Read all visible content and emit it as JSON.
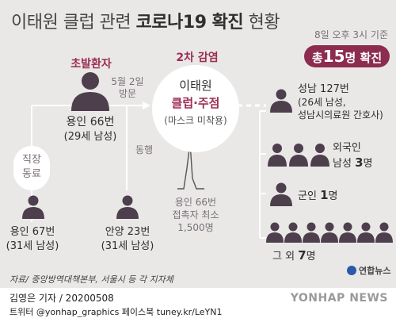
{
  "title": {
    "prefix": "이태원 클럽 관련",
    "bold": "코로나19 확진",
    "suffix": "현황"
  },
  "as_of": "8일 오후 3시 기준",
  "total": {
    "prefix": "총",
    "number": "15",
    "suffix": "명 확진"
  },
  "patient_zero": {
    "heading": "초발환자",
    "name": "용인 66번",
    "detail": "(29세 남성)"
  },
  "visit": {
    "date": "5월 2일",
    "action": "방문"
  },
  "club": {
    "name": "이태원",
    "bold": "클럽·주점",
    "note": "(마스크 미착용)",
    "heading": "2차 감염"
  },
  "accompany": "동행",
  "coworker": {
    "line1": "직장",
    "line2": "동료"
  },
  "p67": {
    "name": "용인 67번",
    "detail": "(31세 남성)"
  },
  "p23": {
    "name": "안양 23번",
    "detail": "(31세 남성)"
  },
  "contacts": {
    "line1": "용인 66번",
    "line2": "접촉자 최소",
    "line3": "1,500명"
  },
  "right_groups": [
    {
      "line1": "성남 127번",
      "line2": "(26세 남성,",
      "line3": "성남시의료원 간호사)"
    },
    {
      "line1": "외국인",
      "line2_prefix": "남성 ",
      "line2_num": "3",
      "line2_suffix": "명"
    },
    {
      "prefix": "군인 ",
      "num": "1",
      "suffix": "명"
    },
    {
      "prefix": "그 외 ",
      "num": "7",
      "suffix": "명"
    }
  ],
  "source": "자료/ 중앙방역대책본부, 서울시 등 각 지자체",
  "logo": "연합뉴스",
  "credit_line1": "김영은 기자 / 20200508",
  "credit_line2": "트위터 @yonhap_graphics  페이스북 tuney.kr/LeYN1",
  "watermark": "YONHAP NEWS",
  "colors": {
    "accent": "#9b2d55",
    "person": "#4e3f4d",
    "panel": "#e9e8e7",
    "circle": "#ffffff"
  }
}
